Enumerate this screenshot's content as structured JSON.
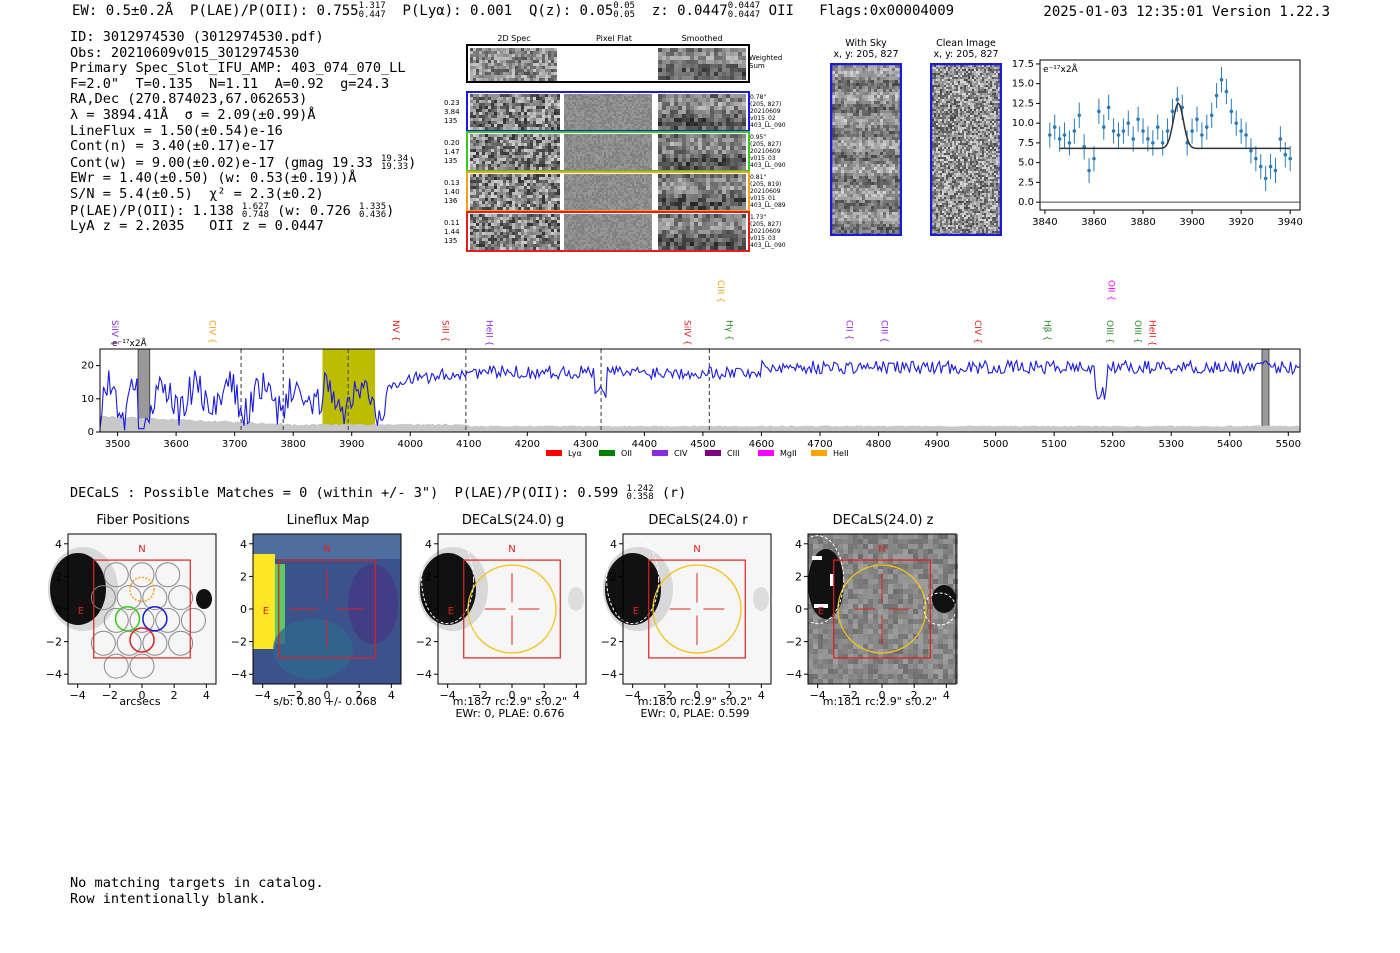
{
  "header": {
    "ew": "EW: 0.5±0.2Å",
    "plae": "P(LAE)/P(OII): 0.755",
    "plae_hi": "1.317",
    "plae_lo": "0.447",
    "plya": "P(Lyα): 0.001",
    "qz": "Q(z): 0.05",
    "qz_hi": "0.05",
    "qz_lo": "0.05",
    "z": "z: 0.0447",
    "z_hi": "0.0447",
    "z_lo": "0.0447",
    "z_line": "OII",
    "flags": "Flags:0x00004009",
    "timestamp": "2025-01-03 12:35:01  Version 1.22.3"
  },
  "info": {
    "l1": "ID: 3012974530 (3012974530.pdf)",
    "l2": "Obs: 20210609v015_3012974530",
    "l3": "Primary Spec_Slot_IFU_AMP: 403_074_070_LL",
    "l4": "F=2.0\"  T=0.135  N=1.11  A=0.92  g=24.3",
    "l5": "RA,Dec (270.874023,67.062653)",
    "l6": "λ = 3894.41Å  σ = 2.09(±0.99)Å",
    "l7": "LineFlux = 1.50(±0.54)e-16",
    "l8": "Cont(n) = 3.40(±0.17)e-17",
    "l9": "Cont(w) = 9.00(±0.02)e-17 (gmag 19.33",
    "l9_hi": "19.34",
    "l9_lo": "19.33",
    "l9_end": ")",
    "l10": "EWr = 1.40(±0.50) (w: 0.53(±0.19))Å",
    "l11": "S/N = 5.4(±0.5)  χ² = 2.3(±0.2)",
    "l12": "P(LAE)/P(OII): 1.138",
    "l12_hi": "1.627",
    "l12_lo": "0.748",
    "l12_mid": "(w: 0.726",
    "l12_hi2": "1.335",
    "l12_lo2": "0.436",
    "l12_end": ")",
    "l13": "LyA z = 2.2035   OII z = 0.0447"
  },
  "cutouts": {
    "col_2d": "2D Spec",
    "col_flat": "Pixel Flat",
    "col_smooth": "Smoothed",
    "weighted1": "Weighted",
    "weighted2": "Sum",
    "rows": [
      {
        "color": "#1a1ad8",
        "left": [
          "0.23",
          "3.84",
          "135"
        ],
        "right": [
          "0.78\"",
          "(205, 827)",
          "20210609",
          "v015_02",
          "403_LL_090"
        ]
      },
      {
        "color": "#39c81f",
        "left": [
          "0.20",
          "1.47",
          "135"
        ],
        "right": [
          "0.95\"",
          "(205, 827)",
          "20210609",
          "v015_03",
          "403_LL_090"
        ]
      },
      {
        "color": "#f2a21b",
        "left": [
          "0.13",
          "1.40",
          "136"
        ],
        "right": [
          "0.81\"",
          "(205, 819)",
          "20210609",
          "v015_01",
          "403_LL_089"
        ]
      },
      {
        "color": "#e0201e",
        "left": [
          "0.11",
          "1.44",
          "135"
        ],
        "right": [
          "1.73\"",
          "(205, 827)",
          "20210609",
          "v015_03",
          "403_LL_090"
        ]
      }
    ],
    "with_sky": "With Sky",
    "with_sky_xy": "x, y: 205, 827",
    "clean": "Clean Image",
    "clean_xy": "x, y: 205, 827"
  },
  "zoom_plot": {
    "unit": "e⁻¹⁷x2Å",
    "x_ticks": [
      3840,
      3860,
      3880,
      3900,
      3920,
      3940
    ],
    "y_ticks": [
      "0.0",
      "2.5",
      "5.0",
      "7.5",
      "10.0",
      "12.5",
      "15.0",
      "17.5"
    ],
    "xlim": [
      3838,
      3944
    ],
    "ylim": [
      -1,
      18
    ],
    "points": [
      [
        3842,
        8.5
      ],
      [
        3844,
        9.5
      ],
      [
        3846,
        8.0
      ],
      [
        3848,
        8.5
      ],
      [
        3850,
        7.5
      ],
      [
        3852,
        9.0
      ],
      [
        3854,
        11.0
      ],
      [
        3856,
        7.0
      ],
      [
        3858,
        4.0
      ],
      [
        3860,
        5.5
      ],
      [
        3862,
        11.5
      ],
      [
        3864,
        9.5
      ],
      [
        3866,
        12.0
      ],
      [
        3868,
        9.0
      ],
      [
        3870,
        8.5
      ],
      [
        3872,
        9.0
      ],
      [
        3874,
        10.0
      ],
      [
        3876,
        8.0
      ],
      [
        3878,
        10.5
      ],
      [
        3880,
        9.0
      ],
      [
        3882,
        8.0
      ],
      [
        3884,
        7.5
      ],
      [
        3886,
        9.5
      ],
      [
        3888,
        7.5
      ],
      [
        3890,
        9.0
      ],
      [
        3892,
        11.5
      ],
      [
        3894,
        13.0
      ],
      [
        3896,
        12.0
      ],
      [
        3898,
        7.5
      ],
      [
        3900,
        9.0
      ],
      [
        3902,
        10.5
      ],
      [
        3904,
        8.5
      ],
      [
        3906,
        9.5
      ],
      [
        3908,
        11.0
      ],
      [
        3910,
        13.5
      ],
      [
        3912,
        15.5
      ],
      [
        3914,
        14.0
      ],
      [
        3916,
        11.5
      ],
      [
        3918,
        10.0
      ],
      [
        3920,
        9.0
      ],
      [
        3922,
        8.5
      ],
      [
        3924,
        6.5
      ],
      [
        3926,
        5.5
      ],
      [
        3928,
        4.5
      ],
      [
        3930,
        3.0
      ],
      [
        3932,
        4.5
      ],
      [
        3934,
        4.0
      ],
      [
        3936,
        8.0
      ],
      [
        3938,
        6.0
      ],
      [
        3940,
        5.5
      ]
    ],
    "fit_continuum": 6.8,
    "fit_peak": 12.5,
    "fit_center": 3894.4,
    "fit_sigma": 2.1
  },
  "spectrum": {
    "unit": "e⁻¹⁷x2Å",
    "x_ticks": [
      3500,
      3600,
      3700,
      3800,
      3900,
      4000,
      4100,
      4200,
      4300,
      4400,
      4500,
      4600,
      4700,
      4800,
      4900,
      5000,
      5100,
      5200,
      5300,
      5400,
      5500
    ],
    "y_ticks": [
      "0",
      "10",
      "20"
    ],
    "xlim": [
      3470,
      5520
    ],
    "ylim": [
      0,
      25
    ],
    "highlight": [
      3850,
      3940
    ],
    "dashed_lines": [
      3711,
      3783,
      3894,
      4095,
      4326,
      4511
    ],
    "hatch": [
      [
        3535,
        3555
      ],
      [
        5455,
        5467
      ]
    ],
    "line_labels": [
      {
        "name": "SiIV",
        "wave": 3485,
        "color": "#8a2be2",
        "level": 0
      },
      {
        "name": "CIV",
        "wave": 3652,
        "color": "#f2a21b",
        "level": 0
      },
      {
        "name": "NV",
        "wave": 3965,
        "color": "#e0201e",
        "level": 0
      },
      {
        "name": "SiII",
        "wave": 4050,
        "color": "#e0201e",
        "level": 0
      },
      {
        "name": "HeII",
        "wave": 4125,
        "color": "#8a2be2",
        "level": 0
      },
      {
        "name": "SiIV",
        "wave": 4463,
        "color": "#e0201e",
        "level": 0
      },
      {
        "name": "Hγ",
        "wave": 4535,
        "color": "#2a8a2a",
        "level": 0
      },
      {
        "name": "CIII",
        "wave": 4521,
        "color": "#f2a21b",
        "level": 1
      },
      {
        "name": "CII",
        "wave": 4740,
        "color": "#8a2be2",
        "level": 0
      },
      {
        "name": "CIII",
        "wave": 4800,
        "color": "#8a2be2",
        "level": 0
      },
      {
        "name": "CIV",
        "wave": 4960,
        "color": "#e0201e",
        "level": 0
      },
      {
        "name": "Hβ",
        "wave": 5078,
        "color": "#2a8a2a",
        "level": 0
      },
      {
        "name": "OIII",
        "wave": 5185,
        "color": "#2a8a2a",
        "level": 0
      },
      {
        "name": "OII",
        "wave": 5188,
        "color": "#ff00ff",
        "level": 1
      },
      {
        "name": "OIII",
        "wave": 5233,
        "color": "#2a8a2a",
        "level": 0
      },
      {
        "name": "HeII",
        "wave": 5258,
        "color": "#e0201e",
        "level": 0
      }
    ],
    "legend": [
      {
        "name": "Lyα",
        "color": "#ff0000"
      },
      {
        "name": "OII",
        "color": "#008000"
      },
      {
        "name": "CIV",
        "color": "#8a2be2"
      },
      {
        "name": "CIII",
        "color": "#800080"
      },
      {
        "name": "MgII",
        "color": "#ff00ff"
      },
      {
        "name": "HeII",
        "color": "#ffa500"
      }
    ]
  },
  "decals": {
    "line": "DECaLS : Possible Matches = 0 (within +/- 3\")  P(LAE)/P(OII): 0.599",
    "hi": "1.242",
    "lo": "0.358",
    "band": "(r)"
  },
  "panels": [
    {
      "title": "Fiber Positions",
      "caption1": "arcsecs",
      "caption2": ""
    },
    {
      "title": "Lineflux Map",
      "caption1": "s/b: 0.80 +/- 0.068",
      "caption2": ""
    },
    {
      "title": "DECaLS(24.0) g",
      "caption1": "m:18.7 rc:2.9\"  s:0.2\"",
      "caption2": "EWr: 0, PLAE: 0.676"
    },
    {
      "title": "DECaLS(24.0) r",
      "caption1": "m:18.0 rc:2.9\"  s:0.2\"",
      "caption2": "EWr: 0, PLAE: 0.599"
    },
    {
      "title": "DECaLS(24.0) z",
      "caption1": "m:18.1 rc:2.9\"  s:0.2\"",
      "caption2": ""
    }
  ],
  "panel_axes": {
    "ticks": [
      "−4",
      "−2",
      "0",
      "2",
      "4"
    ],
    "north": "N",
    "east": "E"
  },
  "footer": {
    "l1": "No matching targets in catalog.",
    "l2": "Row intentionally blank."
  }
}
